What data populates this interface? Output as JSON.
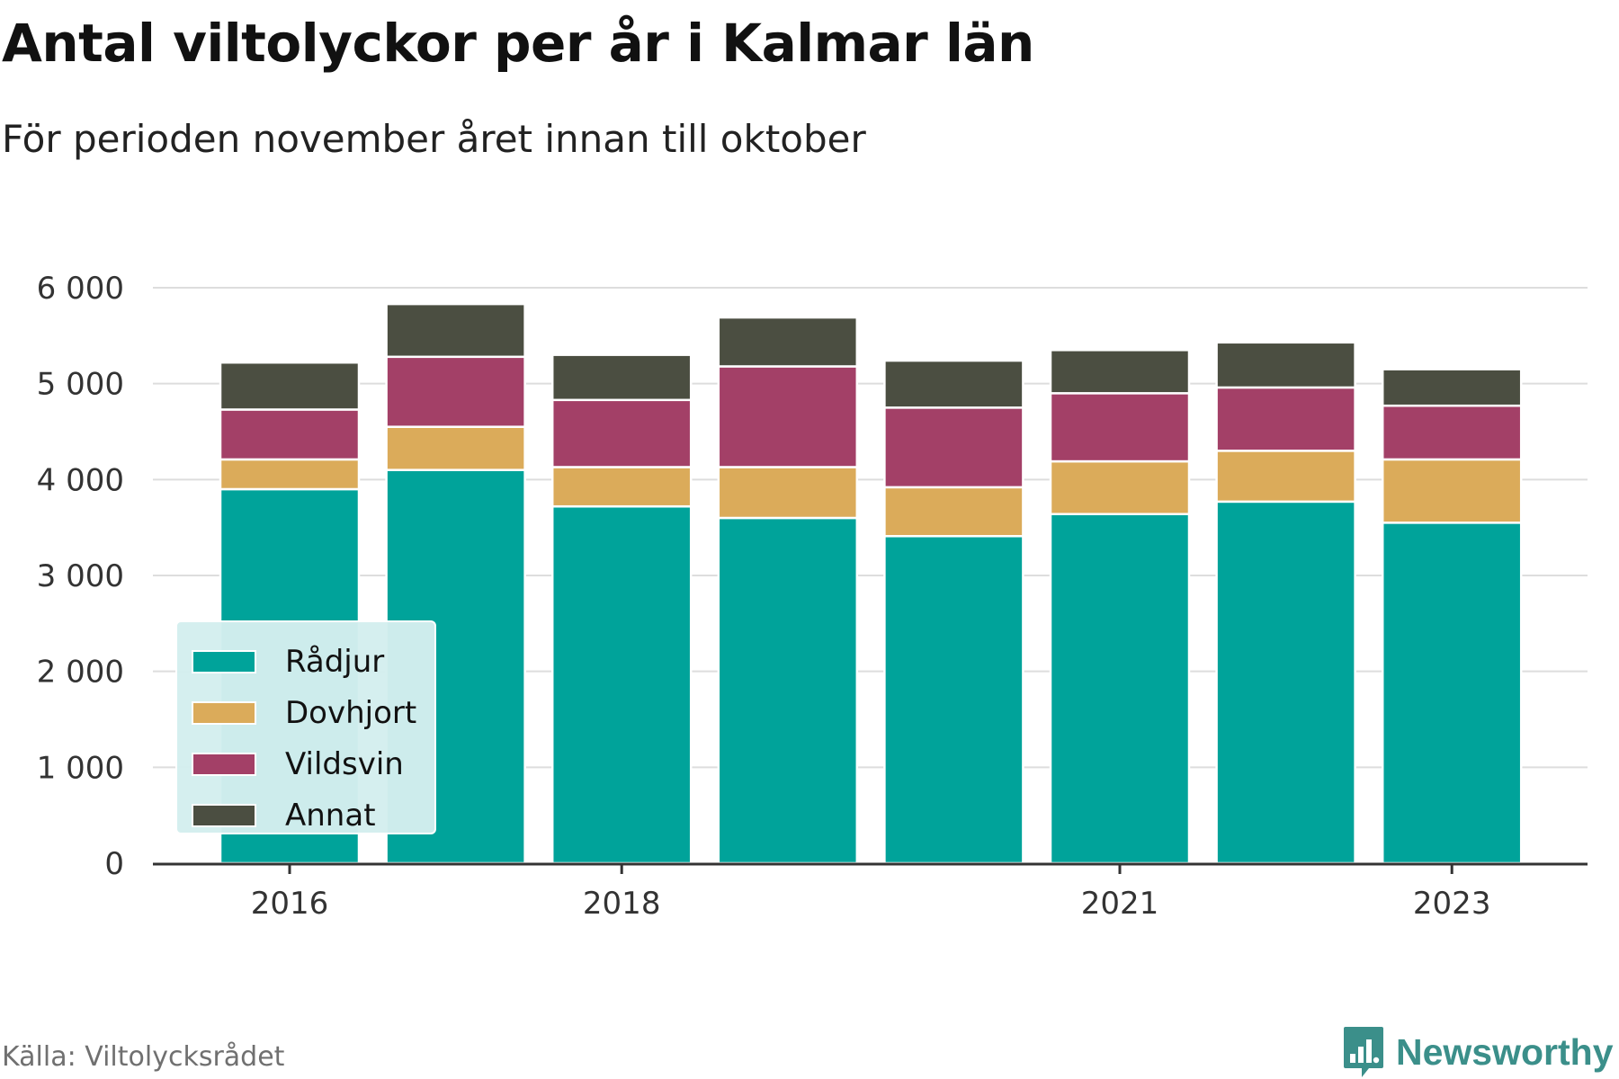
{
  "title": "Antal viltolyckor per år i Kalmar län",
  "subtitle": "För perioden november året innan till oktober",
  "source": "Källa: Viltolycksrådet",
  "brand": "Newsworthy",
  "chart_data": {
    "type": "bar",
    "stacked": true,
    "years": [
      2016,
      2017,
      2018,
      2019,
      2020,
      2021,
      2022,
      2023
    ],
    "x_tick_labels": [
      "2016",
      "2018",
      "2021",
      "2023"
    ],
    "y_tick_labels": [
      "0",
      "1 000",
      "2 000",
      "3 000",
      "4 000",
      "5 000",
      "6 000"
    ],
    "ylim": [
      0,
      6000
    ],
    "grid": true,
    "legend_position": "bottom-left",
    "series": [
      {
        "name": "Rådjur",
        "color": "#00a39a",
        "values": [
          3900,
          4100,
          3720,
          3600,
          3410,
          3640,
          3770,
          3550
        ]
      },
      {
        "name": "Dovhjort",
        "color": "#dbab5a",
        "values": [
          310,
          450,
          410,
          530,
          510,
          550,
          530,
          660
        ]
      },
      {
        "name": "Vildsvin",
        "color": "#a34067",
        "values": [
          520,
          730,
          700,
          1050,
          830,
          710,
          660,
          560
        ]
      },
      {
        "name": "Annat",
        "color": "#4b4e41",
        "values": [
          490,
          550,
          470,
          510,
          490,
          450,
          470,
          380
        ]
      }
    ]
  }
}
